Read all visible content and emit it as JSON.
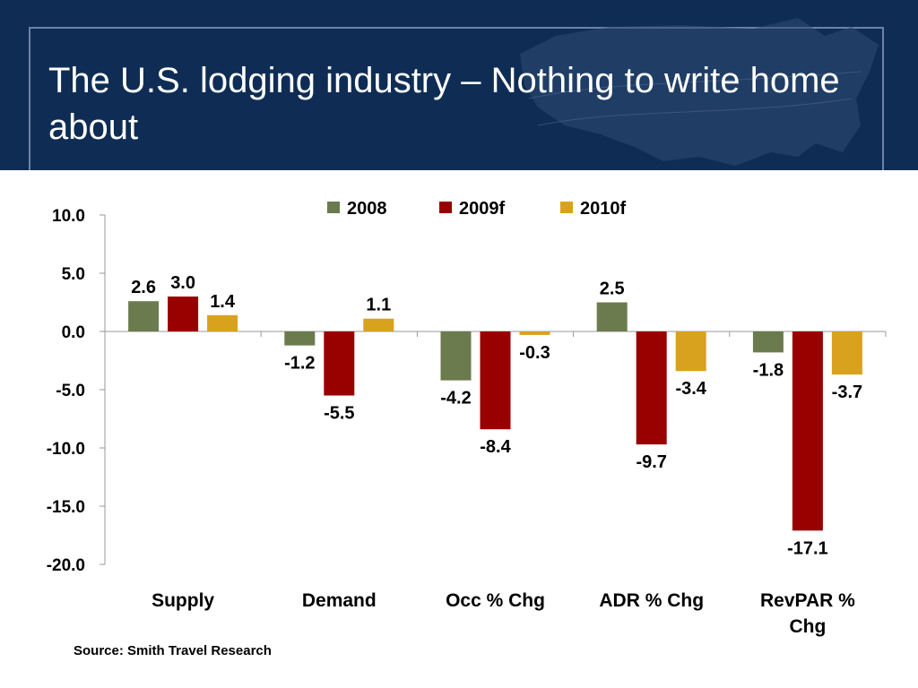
{
  "slide": {
    "title": "The U.S. lodging industry – Nothing to write home about",
    "source": "Source: Smith Travel Research",
    "header_color": "#0f2d54"
  },
  "chart_data": {
    "type": "bar",
    "categories": [
      [
        "Supply"
      ],
      [
        "Demand"
      ],
      [
        "Occ % Chg"
      ],
      [
        "ADR % Chg"
      ],
      [
        "RevPAR %",
        "Chg"
      ]
    ],
    "series": [
      {
        "name": "2008",
        "color": "#6b7b4e",
        "values": [
          2.6,
          -1.2,
          -4.2,
          2.5,
          -1.8
        ]
      },
      {
        "name": "2009f",
        "color": "#990000",
        "values": [
          3.0,
          -5.5,
          -8.4,
          -9.7,
          -17.1
        ]
      },
      {
        "name": "2010f",
        "color": "#d9a21e",
        "values": [
          1.4,
          1.1,
          -0.3,
          -3.4,
          -3.7
        ]
      }
    ],
    "y_ticks": [
      "10.0",
      "5.0",
      "0.0",
      "-5.0",
      "-10.0",
      "-15.0",
      "-20.0"
    ],
    "ylim": [
      -20,
      10
    ],
    "legend_position": "top-center",
    "grid": false
  }
}
